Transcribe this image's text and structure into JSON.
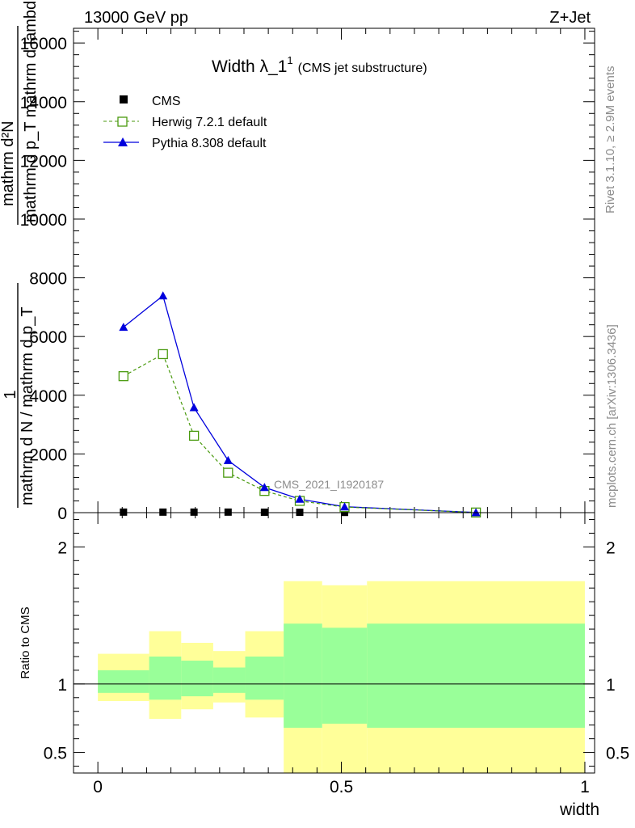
{
  "header": {
    "energy_label": "13000 GeV pp",
    "process_label": "Z+Jet"
  },
  "side_labels": {
    "rivet": "Rivet 3.1.10, ≥ 2.9M events",
    "mcplots": "mcplots.cern.ch [arXiv:1306.3436]"
  },
  "chart_data": [
    {
      "type": "line",
      "title": "Width λ_1",
      "title_sup": "1",
      "subtitle": "(CMS jet substructure)",
      "watermark": "CMS_2021_I1920187",
      "ylabel_numerator": "mathrm d²N",
      "ylabel_denominator": "mathrm d p_T mathrm d lambda",
      "ylabel_fraction_numerator": "1",
      "ylabel_fraction_denominator": "mathrm d N / mathrm d p_T",
      "xlim": [
        0,
        1
      ],
      "ylim": [
        0,
        16500
      ],
      "yticks": [
        0,
        2000,
        4000,
        6000,
        8000,
        10000,
        12000,
        14000,
        16000
      ],
      "ytick_labels": [
        "0",
        "2000",
        "4000",
        "6000",
        "8000",
        "10000",
        "12000",
        "14000",
        "16000"
      ],
      "legend_position": "top-left",
      "x": [
        0.0526,
        0.1337,
        0.1974,
        0.2674,
        0.3421,
        0.4145,
        0.5066,
        0.7763
      ],
      "series": [
        {
          "name": "CMS",
          "color": "#000000",
          "marker": "square-filled",
          "values": [
            18,
            18,
            18,
            18,
            15,
            12,
            8,
            2
          ]
        },
        {
          "name": "Herwig 7.2.1 default",
          "color": "#4a9a0f",
          "marker": "square-open",
          "dash": "dashed",
          "values": [
            4650,
            5400,
            2620,
            1360,
            740,
            400,
            190,
            5
          ]
        },
        {
          "name": "Pythia 8.308 default",
          "color": "#0000dd",
          "marker": "triangle-filled",
          "values": [
            6320,
            7390,
            3580,
            1780,
            860,
            460,
            200,
            5
          ]
        }
      ]
    },
    {
      "type": "area",
      "ylabel": "Ratio to CMS",
      "xlabel": "width",
      "xlim": [
        -0.05,
        1.02
      ],
      "ylim": [
        0.35,
        2.25
      ],
      "xticks": [
        0,
        0.5,
        1
      ],
      "xtick_labels": [
        "0",
        "0.5",
        "1"
      ],
      "yticks": [
        0.5,
        1,
        2
      ],
      "ytick_labels": [
        "0.5",
        "1",
        "2"
      ],
      "bin_edges": [
        0.0,
        0.1053,
        0.1711,
        0.2368,
        0.3026,
        0.3816,
        0.4605,
        0.5526,
        1.0
      ],
      "outer_band_color": "#ffff99",
      "inner_band_color": "#99ff99",
      "outer_band_low": [
        0.875,
        0.745,
        0.815,
        0.865,
        0.755,
        0.35,
        0.35,
        0.35
      ],
      "outer_band_high": [
        1.22,
        1.385,
        1.3,
        1.24,
        1.385,
        1.75,
        1.72,
        1.75
      ],
      "inner_band_low": [
        0.935,
        0.885,
        0.91,
        0.935,
        0.885,
        0.68,
        0.71,
        0.68
      ],
      "inner_band_high": [
        1.1,
        1.2,
        1.17,
        1.12,
        1.2,
        1.44,
        1.41,
        1.44
      ],
      "reference_line": 1
    }
  ]
}
